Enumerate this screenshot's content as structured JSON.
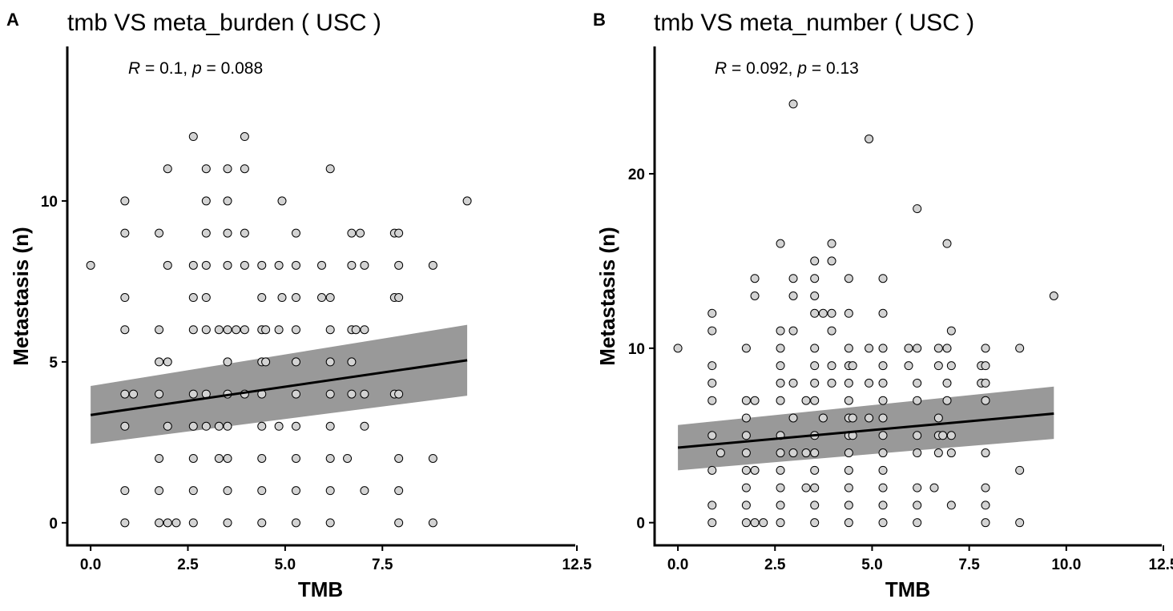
{
  "chart_data": [
    {
      "type": "scatter",
      "panel": "A",
      "title": "tmb  VS  meta_burden ( USC )",
      "xlabel": "TMB",
      "ylabel": "Metastasis (n)",
      "xlim": [
        -0.6,
        12.5
      ],
      "ylim": [
        -0.7,
        14.8
      ],
      "xticks": [
        0.0,
        2.5,
        5.0,
        7.5,
        12.5
      ],
      "xtick_labels": [
        "0.0",
        "2.5",
        "5.0",
        "7.5",
        "12.5"
      ],
      "yticks": [
        0,
        5,
        10
      ],
      "ytick_labels": [
        "0",
        "5",
        "10"
      ],
      "correlation": {
        "R_label": "R",
        "R": "0.1",
        "p_label": "p",
        "p": "0.088"
      },
      "grid": false,
      "points": [
        [
          0,
          8
        ],
        [
          0.88,
          10
        ],
        [
          0.88,
          9
        ],
        [
          0.88,
          7
        ],
        [
          0.88,
          6
        ],
        [
          0.88,
          4
        ],
        [
          0.88,
          3
        ],
        [
          0.88,
          1
        ],
        [
          0.88,
          0
        ],
        [
          1.1,
          4
        ],
        [
          1.76,
          9
        ],
        [
          1.76,
          6
        ],
        [
          1.76,
          5
        ],
        [
          1.76,
          4
        ],
        [
          1.76,
          2
        ],
        [
          1.76,
          1
        ],
        [
          1.76,
          0
        ],
        [
          1.98,
          11
        ],
        [
          1.98,
          8
        ],
        [
          1.98,
          5
        ],
        [
          1.98,
          3
        ],
        [
          1.98,
          0
        ],
        [
          2.2,
          0
        ],
        [
          2.64,
          12
        ],
        [
          2.64,
          8
        ],
        [
          2.64,
          7
        ],
        [
          2.64,
          6
        ],
        [
          2.64,
          4
        ],
        [
          2.64,
          3
        ],
        [
          2.64,
          2
        ],
        [
          2.64,
          1
        ],
        [
          2.64,
          0
        ],
        [
          2.97,
          11
        ],
        [
          2.97,
          10
        ],
        [
          2.97,
          9
        ],
        [
          2.97,
          8
        ],
        [
          2.97,
          7
        ],
        [
          2.97,
          6
        ],
        [
          2.97,
          4
        ],
        [
          2.97,
          3
        ],
        [
          3.3,
          6
        ],
        [
          3.3,
          3
        ],
        [
          3.3,
          2
        ],
        [
          3.52,
          11
        ],
        [
          3.52,
          10
        ],
        [
          3.52,
          9
        ],
        [
          3.52,
          8
        ],
        [
          3.52,
          6
        ],
        [
          3.52,
          5
        ],
        [
          3.52,
          4
        ],
        [
          3.52,
          3
        ],
        [
          3.52,
          2
        ],
        [
          3.52,
          1
        ],
        [
          3.52,
          0
        ],
        [
          3.96,
          12
        ],
        [
          3.96,
          11
        ],
        [
          3.96,
          9
        ],
        [
          3.96,
          8
        ],
        [
          3.96,
          6
        ],
        [
          3.96,
          4
        ],
        [
          3.74,
          6
        ],
        [
          4.4,
          8
        ],
        [
          4.4,
          7
        ],
        [
          4.4,
          6
        ],
        [
          4.4,
          5
        ],
        [
          4.4,
          4
        ],
        [
          4.4,
          3
        ],
        [
          4.4,
          2
        ],
        [
          4.4,
          1
        ],
        [
          4.4,
          0
        ],
        [
          4.5,
          6
        ],
        [
          4.5,
          5
        ],
        [
          4.84,
          8
        ],
        [
          4.84,
          6
        ],
        [
          4.84,
          3
        ],
        [
          4.92,
          10
        ],
        [
          4.92,
          7
        ],
        [
          5.28,
          9
        ],
        [
          5.28,
          8
        ],
        [
          5.28,
          7
        ],
        [
          5.28,
          6
        ],
        [
          5.28,
          5
        ],
        [
          5.28,
          4
        ],
        [
          5.28,
          3
        ],
        [
          5.28,
          2
        ],
        [
          5.28,
          1
        ],
        [
          5.28,
          0
        ],
        [
          5.94,
          8
        ],
        [
          5.94,
          7
        ],
        [
          6.16,
          11
        ],
        [
          6.16,
          7
        ],
        [
          6.16,
          6
        ],
        [
          6.16,
          5
        ],
        [
          6.16,
          4
        ],
        [
          6.16,
          3
        ],
        [
          6.16,
          2
        ],
        [
          6.16,
          1
        ],
        [
          6.16,
          0
        ],
        [
          6.6,
          2
        ],
        [
          6.71,
          9
        ],
        [
          6.71,
          8
        ],
        [
          6.71,
          6
        ],
        [
          6.71,
          5
        ],
        [
          6.71,
          4
        ],
        [
          6.82,
          6
        ],
        [
          6.93,
          9
        ],
        [
          7.04,
          8
        ],
        [
          7.04,
          6
        ],
        [
          7.04,
          4
        ],
        [
          7.04,
          3
        ],
        [
          7.04,
          1
        ],
        [
          7.81,
          9
        ],
        [
          7.81,
          7
        ],
        [
          7.81,
          4
        ],
        [
          7.92,
          9
        ],
        [
          7.92,
          8
        ],
        [
          7.92,
          7
        ],
        [
          7.92,
          4
        ],
        [
          7.92,
          2
        ],
        [
          7.92,
          1
        ],
        [
          7.92,
          0
        ],
        [
          8.8,
          8
        ],
        [
          8.8,
          2
        ],
        [
          8.8,
          0
        ],
        [
          9.68,
          10
        ]
      ],
      "fit": {
        "x": [
          0,
          9.68
        ],
        "y": [
          3.35,
          5.05
        ]
      },
      "band": {
        "x": [
          0,
          9.68
        ],
        "lower": [
          2.45,
          3.95
        ],
        "upper": [
          4.25,
          6.15
        ]
      },
      "colors": {
        "point_fill": "#d3d3d3",
        "point_stroke": "#000000",
        "band": "#999999",
        "line": "#000000"
      }
    },
    {
      "type": "scatter",
      "panel": "B",
      "title": "tmb  VS  meta_number ( USC )",
      "xlabel": "TMB",
      "ylabel": "Metastasis (n)",
      "xlim": [
        -0.6,
        12.5
      ],
      "ylim": [
        -1.3,
        27.3
      ],
      "xticks": [
        0.0,
        2.5,
        5.0,
        7.5,
        10.0,
        12.5
      ],
      "xtick_labels": [
        "0.0",
        "2.5",
        "5.0",
        "7.5",
        "10.0",
        "12.5"
      ],
      "yticks": [
        0,
        10,
        20
      ],
      "ytick_labels": [
        "0",
        "10",
        "20"
      ],
      "correlation": {
        "R_label": "R",
        "R": "0.092",
        "p_label": "p",
        "p": "0.13"
      },
      "grid": false,
      "points": [
        [
          0,
          10
        ],
        [
          0.88,
          12
        ],
        [
          0.88,
          11
        ],
        [
          0.88,
          9
        ],
        [
          0.88,
          8
        ],
        [
          0.88,
          7
        ],
        [
          0.88,
          5
        ],
        [
          0.88,
          3
        ],
        [
          0.88,
          1
        ],
        [
          0.88,
          0
        ],
        [
          1.1,
          4
        ],
        [
          1.76,
          10
        ],
        [
          1.76,
          7
        ],
        [
          1.76,
          6
        ],
        [
          1.76,
          5
        ],
        [
          1.76,
          4
        ],
        [
          1.76,
          3
        ],
        [
          1.76,
          2
        ],
        [
          1.76,
          1
        ],
        [
          1.76,
          0
        ],
        [
          1.98,
          14
        ],
        [
          1.98,
          13
        ],
        [
          1.98,
          7
        ],
        [
          1.98,
          3
        ],
        [
          1.98,
          0
        ],
        [
          2.2,
          0
        ],
        [
          2.64,
          16
        ],
        [
          2.64,
          11
        ],
        [
          2.64,
          10
        ],
        [
          2.64,
          9
        ],
        [
          2.64,
          8
        ],
        [
          2.64,
          7
        ],
        [
          2.64,
          5
        ],
        [
          2.64,
          4
        ],
        [
          2.64,
          3
        ],
        [
          2.64,
          2
        ],
        [
          2.64,
          1
        ],
        [
          2.64,
          0
        ],
        [
          2.97,
          24
        ],
        [
          2.97,
          14
        ],
        [
          2.97,
          13
        ],
        [
          2.97,
          11
        ],
        [
          2.97,
          8
        ],
        [
          2.97,
          6
        ],
        [
          2.97,
          4
        ],
        [
          3.3,
          7
        ],
        [
          3.3,
          4
        ],
        [
          3.3,
          2
        ],
        [
          3.52,
          15
        ],
        [
          3.52,
          14
        ],
        [
          3.52,
          13
        ],
        [
          3.52,
          12
        ],
        [
          3.52,
          10
        ],
        [
          3.52,
          9
        ],
        [
          3.52,
          8
        ],
        [
          3.52,
          7
        ],
        [
          3.52,
          5
        ],
        [
          3.52,
          4
        ],
        [
          3.52,
          3
        ],
        [
          3.52,
          2
        ],
        [
          3.52,
          1
        ],
        [
          3.52,
          0
        ],
        [
          3.96,
          16
        ],
        [
          3.96,
          15
        ],
        [
          3.96,
          12
        ],
        [
          3.96,
          11
        ],
        [
          3.96,
          9
        ],
        [
          3.96,
          8
        ],
        [
          3.74,
          12
        ],
        [
          3.74,
          6
        ],
        [
          4.4,
          14
        ],
        [
          4.4,
          12
        ],
        [
          4.4,
          10
        ],
        [
          4.4,
          9
        ],
        [
          4.4,
          8
        ],
        [
          4.4,
          7
        ],
        [
          4.4,
          6
        ],
        [
          4.4,
          5
        ],
        [
          4.4,
          4
        ],
        [
          4.4,
          3
        ],
        [
          4.4,
          2
        ],
        [
          4.4,
          1
        ],
        [
          4.4,
          0
        ],
        [
          4.5,
          9
        ],
        [
          4.5,
          6
        ],
        [
          4.5,
          5
        ],
        [
          4.92,
          22
        ],
        [
          4.92,
          10
        ],
        [
          4.92,
          8
        ],
        [
          4.92,
          6
        ],
        [
          5.28,
          14
        ],
        [
          5.28,
          12
        ],
        [
          5.28,
          10
        ],
        [
          5.28,
          9
        ],
        [
          5.28,
          8
        ],
        [
          5.28,
          7
        ],
        [
          5.28,
          6
        ],
        [
          5.28,
          5
        ],
        [
          5.28,
          4
        ],
        [
          5.28,
          3
        ],
        [
          5.28,
          2
        ],
        [
          5.28,
          1
        ],
        [
          5.28,
          0
        ],
        [
          5.94,
          10
        ],
        [
          5.94,
          9
        ],
        [
          6.16,
          18
        ],
        [
          6.16,
          10
        ],
        [
          6.16,
          8
        ],
        [
          6.16,
          7
        ],
        [
          6.16,
          5
        ],
        [
          6.16,
          4
        ],
        [
          6.16,
          2
        ],
        [
          6.16,
          1
        ],
        [
          6.16,
          0
        ],
        [
          6.6,
          2
        ],
        [
          6.71,
          10
        ],
        [
          6.71,
          9
        ],
        [
          6.71,
          6
        ],
        [
          6.71,
          5
        ],
        [
          6.71,
          4
        ],
        [
          6.82,
          5
        ],
        [
          6.93,
          16
        ],
        [
          6.93,
          10
        ],
        [
          6.93,
          8
        ],
        [
          6.93,
          7
        ],
        [
          7.04,
          11
        ],
        [
          7.04,
          9
        ],
        [
          7.04,
          5
        ],
        [
          7.04,
          4
        ],
        [
          7.04,
          1
        ],
        [
          7.81,
          9
        ],
        [
          7.81,
          8
        ],
        [
          7.92,
          10
        ],
        [
          7.92,
          9
        ],
        [
          7.92,
          8
        ],
        [
          7.92,
          7
        ],
        [
          7.92,
          4
        ],
        [
          7.92,
          2
        ],
        [
          7.92,
          1
        ],
        [
          7.92,
          0
        ],
        [
          8.8,
          10
        ],
        [
          8.8,
          3
        ],
        [
          8.8,
          0
        ],
        [
          9.68,
          13
        ]
      ],
      "fit": {
        "x": [
          0,
          9.68
        ],
        "y": [
          4.3,
          6.25
        ]
      },
      "band": {
        "x": [
          0,
          9.68
        ],
        "lower": [
          3.0,
          4.8
        ],
        "upper": [
          5.6,
          7.8
        ]
      },
      "colors": {
        "point_fill": "#d3d3d3",
        "point_stroke": "#000000",
        "band": "#999999",
        "line": "#000000"
      }
    }
  ]
}
